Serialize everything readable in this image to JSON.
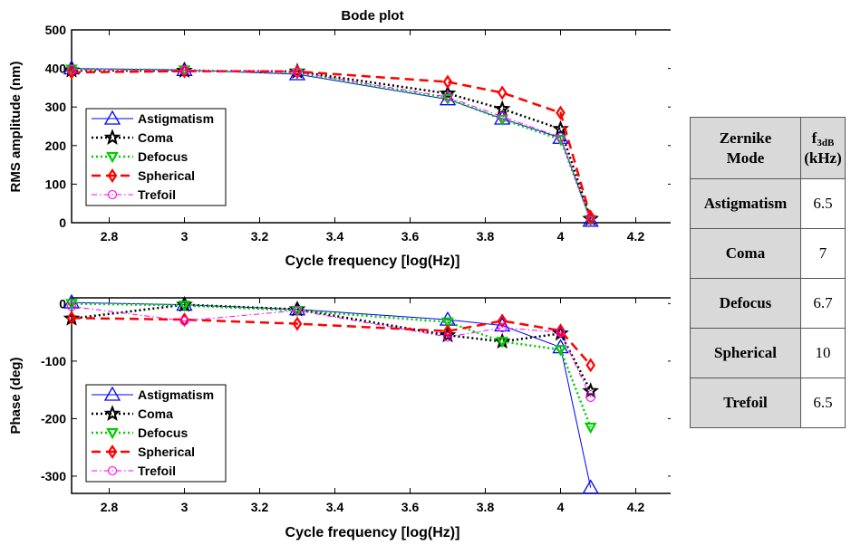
{
  "chart_data": [
    {
      "type": "line",
      "title": "Bode plot",
      "xlabel": "Cycle frequency [log(Hz)]",
      "ylabel": "RMS amplitude (nm)",
      "xlim": [
        2.7,
        4.3
      ],
      "ylim": [
        0,
        500
      ],
      "xticks": [
        2.8,
        3,
        3.2,
        3.4,
        3.6,
        3.8,
        4,
        4.2
      ],
      "yticks": [
        0,
        100,
        200,
        300,
        400,
        500
      ],
      "xtick_labels": [
        "2.8",
        "3",
        "3.2",
        "3.4",
        "3.6",
        "3.8",
        "4",
        "4.2"
      ],
      "ytick_labels": [
        "0",
        "100",
        "200",
        "300",
        "400",
        "500"
      ],
      "grid": false,
      "legend_position": "bottom-left",
      "x": [
        2.7,
        3.0,
        3.3,
        3.7,
        3.845,
        4.0,
        4.08
      ],
      "series": [
        {
          "name": "Astigmatism",
          "color": "#0000ff",
          "values": [
            400,
            396,
            385,
            320,
            270,
            220,
            5
          ]
        },
        {
          "name": "Coma",
          "color": "#000000",
          "values": [
            395,
            394,
            392,
            335,
            295,
            243,
            10
          ]
        },
        {
          "name": "Defocus",
          "color": "#00cc00",
          "values": [
            398,
            396,
            388,
            322,
            268,
            216,
            8
          ]
        },
        {
          "name": "Spherical",
          "color": "#ff0000",
          "values": [
            390,
            393,
            392,
            365,
            337,
            285,
            15
          ]
        },
        {
          "name": "Trefoil",
          "color": "#ff00ff",
          "values": [
            397,
            395,
            390,
            326,
            275,
            222,
            6
          ]
        }
      ]
    },
    {
      "type": "line",
      "title": "",
      "xlabel": "Cycle frequency [log(Hz)]",
      "ylabel": "Phase (deg)",
      "xlim": [
        2.7,
        4.3
      ],
      "ylim": [
        -330,
        10
      ],
      "xticks": [
        2.8,
        3,
        3.2,
        3.4,
        3.6,
        3.8,
        4,
        4.2
      ],
      "yticks": [
        0,
        -100,
        -200,
        -300
      ],
      "xtick_labels": [
        "2.8",
        "3",
        "3.2",
        "3.4",
        "3.6",
        "3.8",
        "4",
        "4.2"
      ],
      "ytick_labels": [
        "0",
        "-100",
        "-200",
        "-300"
      ],
      "grid": false,
      "legend_position": "bottom-left",
      "x": [
        2.7,
        3.0,
        3.3,
        3.7,
        3.845,
        4.0,
        4.08
      ],
      "series": [
        {
          "name": "Astigmatism",
          "color": "#0000ff",
          "values": [
            2,
            -2,
            -10,
            -28,
            -38,
            -76,
            -320
          ]
        },
        {
          "name": "Coma",
          "color": "#000000",
          "values": [
            -26,
            -2,
            -10,
            -55,
            -66,
            -52,
            -152
          ]
        },
        {
          "name": "Defocus",
          "color": "#00cc00",
          "values": [
            0,
            -3,
            -12,
            -32,
            -66,
            -80,
            -215
          ]
        },
        {
          "name": "Spherical",
          "color": "#ff0000",
          "values": [
            -25,
            -28,
            -35,
            -48,
            -30,
            -47,
            -107
          ]
        },
        {
          "name": "Trefoil",
          "color": "#ff00ff",
          "values": [
            -5,
            -30,
            -12,
            -58,
            -42,
            -50,
            -163
          ]
        }
      ]
    }
  ],
  "table": {
    "header_mode": [
      "Zernike",
      "Mode"
    ],
    "header_f_main": "f",
    "header_f_sub": "3dB",
    "header_f_unit": "(kHz)",
    "rows": [
      {
        "mode": "Astigmatism",
        "value": "6.5"
      },
      {
        "mode": "Coma",
        "value": "7"
      },
      {
        "mode": "Defocus",
        "value": "6.7"
      },
      {
        "mode": "Spherical",
        "value": "10"
      },
      {
        "mode": "Trefoil",
        "value": "6.5"
      }
    ]
  }
}
